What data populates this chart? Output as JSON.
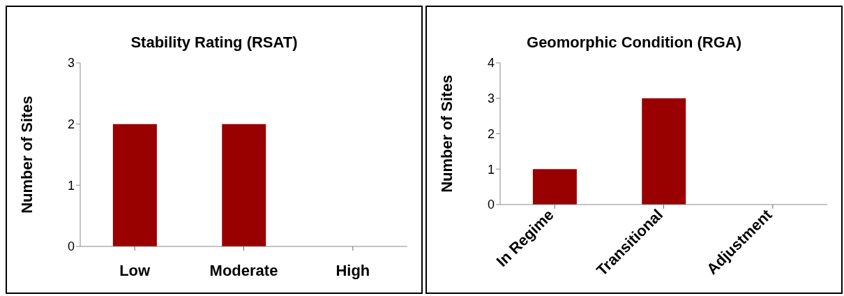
{
  "chart_data": [
    {
      "type": "bar",
      "title": "Stability Rating (RSAT)",
      "ylabel": "Number of Sites",
      "categories": [
        "Low",
        "Moderate",
        "High"
      ],
      "values": [
        2,
        2,
        0
      ],
      "color": "#990000",
      "ylim": [
        0,
        3
      ],
      "yticks": [
        0,
        1,
        2,
        3
      ],
      "grid": false,
      "legend": false
    },
    {
      "type": "bar",
      "title": "Geomorphic Condition (RGA)",
      "ylabel": "Number of Sites",
      "categories": [
        "In Regime",
        "Transitional",
        "Adjustment"
      ],
      "values": [
        1,
        3,
        0
      ],
      "color": "#990000",
      "ylim": [
        0,
        4
      ],
      "yticks": [
        0,
        1,
        2,
        3,
        4
      ],
      "grid": false,
      "legend": false
    }
  ]
}
